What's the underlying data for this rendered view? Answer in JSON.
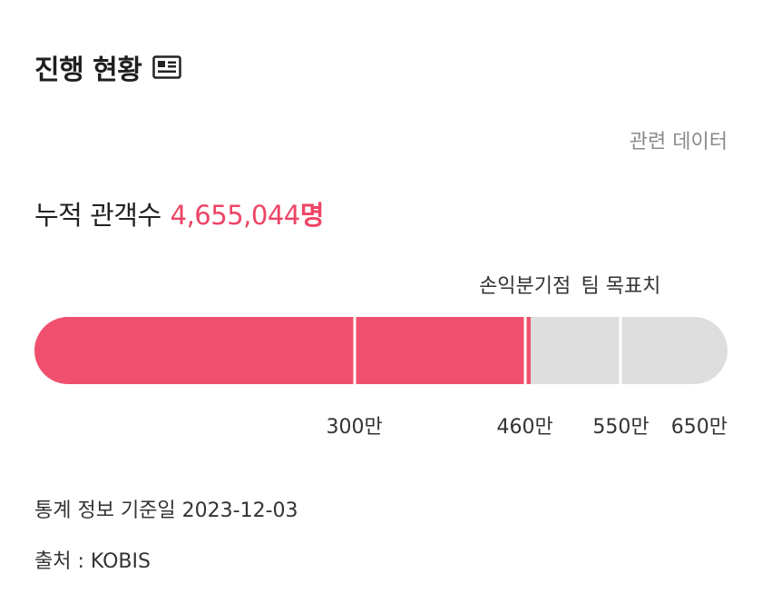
{
  "header": {
    "title": "진행 현황",
    "icon": "news-icon"
  },
  "related_link": "관련 데이터",
  "audience": {
    "label": "누적 관객수",
    "value": "4,655,044",
    "unit": "명"
  },
  "progress": {
    "current": 465.5,
    "max": 650,
    "unit": "만",
    "fill_color": "#f0506e",
    "track_color": "#dedede",
    "markers": [
      {
        "label": "손익분기점",
        "value": 460
      },
      {
        "label": "팀 목표치",
        "value": 550
      }
    ],
    "ticks": [
      {
        "label": "300만",
        "value": 300
      },
      {
        "label": "460만",
        "value": 460
      },
      {
        "label": "550만",
        "value": 550
      },
      {
        "label": "650만",
        "value": 650
      }
    ]
  },
  "footer": {
    "date_line": "통계 정보 기준일 2023-12-03",
    "source_line": "출처 : KOBIS"
  }
}
